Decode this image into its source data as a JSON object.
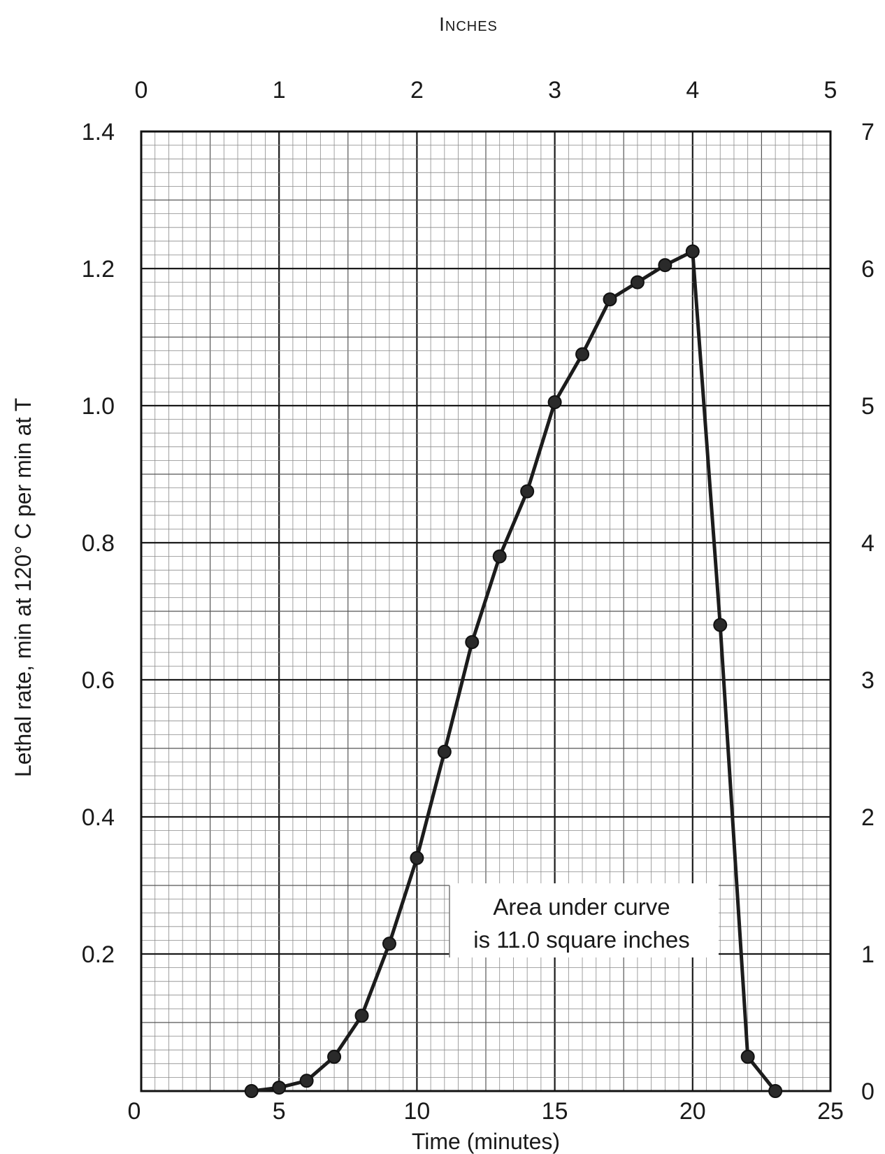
{
  "chart_data": {
    "type": "line",
    "top_axis": {
      "title": "Inches",
      "ticks": [
        "0",
        "1",
        "2",
        "3",
        "4",
        "5"
      ],
      "range": [
        0,
        5
      ]
    },
    "x_axis": {
      "label": "Time (minutes)",
      "ticks": [
        "0",
        "5",
        "10",
        "15",
        "20",
        "25"
      ],
      "range": [
        0,
        25
      ]
    },
    "y_axis_left": {
      "label": "Lethal rate, min at 120° C per min at T",
      "ticks": [
        "0",
        "0.2",
        "0.4",
        "0.6",
        "0.8",
        "1.0",
        "1.2",
        "1.4"
      ],
      "tick_values": [
        0,
        0.2,
        0.4,
        0.6,
        0.8,
        1.0,
        1.2,
        1.4
      ],
      "range": [
        0,
        1.4
      ]
    },
    "y_axis_right": {
      "ticks": [
        "0",
        "1",
        "2",
        "3",
        "4",
        "5",
        "6",
        "7"
      ],
      "range": [
        0,
        7
      ]
    },
    "grid": true,
    "annotation": {
      "line1": "Area under curve",
      "line2": "is 11.0 square inches"
    },
    "series": [
      {
        "x": [
          4,
          5,
          6,
          7,
          8,
          9,
          10,
          11,
          12,
          13,
          14,
          15,
          16,
          17,
          18,
          19,
          20,
          21,
          22,
          23
        ],
        "y": [
          0.0,
          0.005,
          0.015,
          0.05,
          0.11,
          0.215,
          0.34,
          0.495,
          0.655,
          0.78,
          0.875,
          1.005,
          1.075,
          1.155,
          1.18,
          1.205,
          1.225,
          0.68,
          0.05,
          0.0
        ]
      }
    ]
  }
}
